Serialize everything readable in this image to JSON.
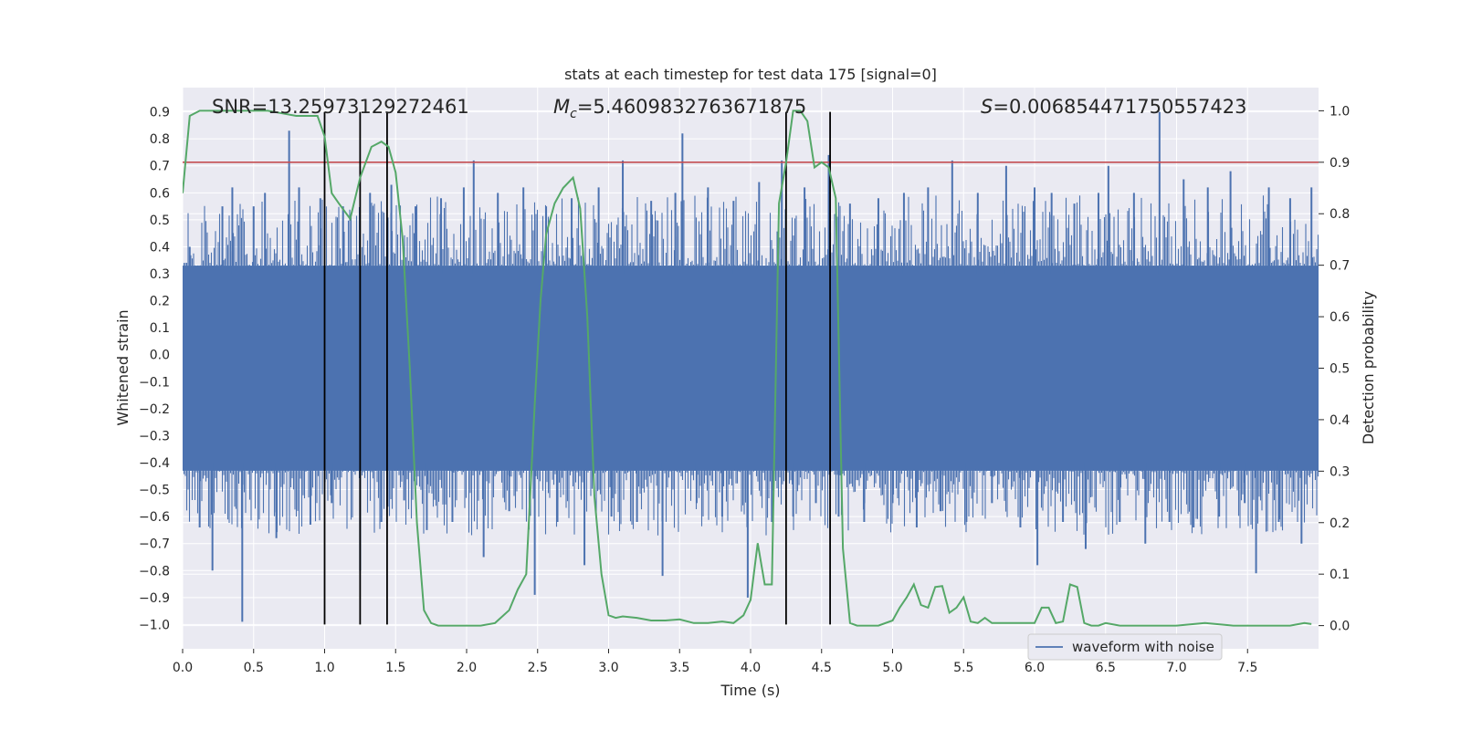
{
  "chart_data": {
    "type": "line",
    "title": "stats at each timestep for test data 175 [signal=0]",
    "xlabel": "Time (s)",
    "ylabel": "Whitened strain",
    "y2label": "Detection probability",
    "xlim": [
      0.0,
      8.0
    ],
    "ylim": [
      -1.09,
      0.99
    ],
    "y2lim": [
      -0.045,
      1.045
    ],
    "x_ticks": [
      0.0,
      0.5,
      1.0,
      1.5,
      2.0,
      2.5,
      3.0,
      3.5,
      4.0,
      4.5,
      5.0,
      5.5,
      6.0,
      6.5,
      7.0,
      7.5
    ],
    "x_tick_labels": [
      "0.0",
      "0.5",
      "1.0",
      "1.5",
      "2.0",
      "2.5",
      "3.0",
      "3.5",
      "4.0",
      "4.5",
      "5.0",
      "5.5",
      "6.0",
      "6.5",
      "7.0",
      "7.5"
    ],
    "y_ticks": [
      0.9,
      0.8,
      0.7,
      0.6,
      0.5,
      0.4,
      0.3,
      0.2,
      0.1,
      0.0,
      -0.1,
      -0.2,
      -0.3,
      -0.4,
      -0.5,
      -0.6,
      -0.7,
      -0.8,
      -0.9,
      -1.0
    ],
    "y_tick_labels": [
      "0.9",
      "0.8",
      "0.7",
      "0.6",
      "0.5",
      "0.4",
      "0.3",
      "0.2",
      "0.1",
      "0.0",
      "−0.1",
      "−0.2",
      "−0.3",
      "−0.4",
      "−0.5",
      "−0.6",
      "−0.7",
      "−0.8",
      "−0.9",
      "−1.0"
    ],
    "y2_ticks": [
      1.0,
      0.9,
      0.8,
      0.7,
      0.6,
      0.5,
      0.4,
      0.3,
      0.2,
      0.1,
      0.0
    ],
    "y2_tick_labels": [
      "1.0",
      "0.9",
      "0.8",
      "0.7",
      "0.6",
      "0.5",
      "0.4",
      "0.3",
      "0.2",
      "0.1",
      "0.0"
    ],
    "grid": true,
    "legend": {
      "position": "bottom-right",
      "entries": [
        "waveform with noise"
      ]
    },
    "annotations": {
      "snr": "SNR=13.25973129272461",
      "mc_symbol": "M",
      "mc_sub": "c",
      "mc_value": "=5.4609832763671875",
      "s_symbol": "S",
      "s_value": "=0.006854471750557423"
    },
    "threshold": {
      "value": 0.9,
      "axis": "y2",
      "color": "#c44e52"
    },
    "vertical_lines": [
      1.0,
      1.25,
      1.44,
      4.25,
      4.56
    ],
    "waveform": {
      "name": "waveform with noise",
      "color": "#4c72b0",
      "core_range": [
        -0.43,
        0.33
      ],
      "spikes": [
        [
          0.05,
          0.4
        ],
        [
          0.12,
          -0.64
        ],
        [
          0.21,
          -0.8
        ],
        [
          0.28,
          0.55
        ],
        [
          0.35,
          0.62
        ],
        [
          0.42,
          -0.99
        ],
        [
          0.5,
          0.55
        ],
        [
          0.58,
          0.6
        ],
        [
          0.66,
          -0.68
        ],
        [
          0.75,
          0.83
        ],
        [
          0.82,
          0.62
        ],
        [
          0.9,
          -0.63
        ],
        [
          0.97,
          0.58
        ],
        [
          1.05,
          -0.55
        ],
        [
          1.13,
          0.55
        ],
        [
          1.25,
          -0.8
        ],
        [
          1.32,
          0.6
        ],
        [
          1.4,
          -0.62
        ],
        [
          1.47,
          0.63
        ],
        [
          1.56,
          -0.54
        ],
        [
          1.64,
          0.55
        ],
        [
          1.72,
          -0.65
        ],
        [
          1.82,
          0.58
        ],
        [
          1.9,
          -0.62
        ],
        [
          1.98,
          0.62
        ],
        [
          2.05,
          0.72
        ],
        [
          2.12,
          -0.75
        ],
        [
          2.22,
          0.6
        ],
        [
          2.3,
          -0.58
        ],
        [
          2.4,
          0.62
        ],
        [
          2.48,
          -0.89
        ],
        [
          2.56,
          0.55
        ],
        [
          2.64,
          -0.62
        ],
        [
          2.74,
          0.58
        ],
        [
          2.83,
          -0.78
        ],
        [
          2.93,
          0.62
        ],
        [
          3.02,
          -0.6
        ],
        [
          3.1,
          0.72
        ],
        [
          3.2,
          -0.62
        ],
        [
          3.3,
          0.57
        ],
        [
          3.38,
          -0.82
        ],
        [
          3.47,
          0.6
        ],
        [
          3.52,
          0.82
        ],
        [
          3.62,
          -0.55
        ],
        [
          3.7,
          0.62
        ],
        [
          3.8,
          -0.6
        ],
        [
          3.88,
          0.57
        ],
        [
          3.98,
          -0.9
        ],
        [
          4.06,
          0.64
        ],
        [
          4.15,
          -0.62
        ],
        [
          4.22,
          0.72
        ],
        [
          4.3,
          -0.6
        ],
        [
          4.38,
          0.62
        ],
        [
          4.46,
          -0.55
        ],
        [
          4.55,
          0.74
        ],
        [
          4.62,
          -0.6
        ],
        [
          4.7,
          0.56
        ],
        [
          4.8,
          -0.62
        ],
        [
          4.9,
          0.58
        ],
        [
          5.0,
          -0.55
        ],
        [
          5.08,
          0.6
        ],
        [
          5.17,
          -0.64
        ],
        [
          5.25,
          0.62
        ],
        [
          5.34,
          -0.58
        ],
        [
          5.42,
          0.72
        ],
        [
          5.52,
          -0.62
        ],
        [
          5.6,
          0.6
        ],
        [
          5.7,
          -0.55
        ],
        [
          5.8,
          0.7
        ],
        [
          5.9,
          -0.64
        ],
        [
          6.0,
          0.62
        ],
        [
          6.02,
          -0.78
        ],
        [
          6.12,
          0.6
        ],
        [
          6.2,
          -0.62
        ],
        [
          6.28,
          0.56
        ],
        [
          6.36,
          -0.72
        ],
        [
          6.45,
          0.6
        ],
        [
          6.52,
          0.7
        ],
        [
          6.6,
          -0.62
        ],
        [
          6.7,
          0.6
        ],
        [
          6.78,
          -0.7
        ],
        [
          6.88,
          0.9
        ],
        [
          6.95,
          -0.62
        ],
        [
          7.05,
          0.65
        ],
        [
          7.12,
          -0.64
        ],
        [
          7.22,
          0.62
        ],
        [
          7.3,
          -0.6
        ],
        [
          7.38,
          0.68
        ],
        [
          7.48,
          -0.55
        ],
        [
          7.56,
          -0.81
        ],
        [
          7.65,
          0.62
        ],
        [
          7.72,
          -0.62
        ],
        [
          7.8,
          0.58
        ],
        [
          7.88,
          -0.7
        ],
        [
          7.95,
          0.62
        ]
      ]
    },
    "probability": {
      "color": "#55a868",
      "x": [
        0.0,
        0.05,
        0.12,
        0.2,
        0.4,
        0.6,
        0.7,
        0.8,
        0.88,
        0.95,
        1.0,
        1.05,
        1.1,
        1.18,
        1.25,
        1.33,
        1.4,
        1.45,
        1.5,
        1.55,
        1.6,
        1.65,
        1.7,
        1.75,
        1.8,
        1.9,
        2.0,
        2.1,
        2.2,
        2.3,
        2.36,
        2.42,
        2.48,
        2.52,
        2.56,
        2.62,
        2.68,
        2.75,
        2.8,
        2.85,
        2.9,
        2.95,
        3.0,
        3.05,
        3.1,
        3.2,
        3.3,
        3.4,
        3.5,
        3.6,
        3.7,
        3.8,
        3.88,
        3.95,
        4.0,
        4.05,
        4.1,
        4.15,
        4.2,
        4.25,
        4.3,
        4.35,
        4.4,
        4.45,
        4.5,
        4.55,
        4.6,
        4.65,
        4.7,
        4.75,
        4.8,
        4.9,
        5.0,
        5.05,
        5.1,
        5.15,
        5.2,
        5.25,
        5.3,
        5.35,
        5.4,
        5.45,
        5.5,
        5.55,
        5.6,
        5.65,
        5.7,
        5.8,
        5.9,
        6.0,
        6.05,
        6.1,
        6.15,
        6.2,
        6.25,
        6.3,
        6.35,
        6.4,
        6.45,
        6.5,
        6.6,
        6.7,
        6.8,
        7.0,
        7.2,
        7.4,
        7.6,
        7.8,
        7.9,
        7.95
      ],
      "y": [
        0.84,
        0.99,
        1.0,
        1.0,
        1.0,
        1.0,
        0.995,
        0.99,
        0.99,
        0.99,
        0.95,
        0.84,
        0.82,
        0.79,
        0.87,
        0.93,
        0.94,
        0.93,
        0.88,
        0.75,
        0.5,
        0.2,
        0.03,
        0.005,
        0.0,
        0.0,
        0.0,
        0.0,
        0.005,
        0.03,
        0.07,
        0.1,
        0.43,
        0.63,
        0.76,
        0.82,
        0.85,
        0.87,
        0.81,
        0.6,
        0.25,
        0.1,
        0.02,
        0.015,
        0.018,
        0.015,
        0.01,
        0.01,
        0.012,
        0.005,
        0.005,
        0.008,
        0.005,
        0.02,
        0.05,
        0.16,
        0.08,
        0.08,
        0.82,
        0.9,
        1.0,
        1.0,
        0.98,
        0.89,
        0.9,
        0.89,
        0.83,
        0.15,
        0.005,
        0.0,
        0.0,
        0.0,
        0.01,
        0.035,
        0.055,
        0.08,
        0.04,
        0.035,
        0.075,
        0.077,
        0.025,
        0.035,
        0.055,
        0.008,
        0.005,
        0.015,
        0.005,
        0.005,
        0.005,
        0.005,
        0.035,
        0.035,
        0.005,
        0.008,
        0.08,
        0.075,
        0.005,
        0.0,
        0.0,
        0.005,
        0.0,
        0.0,
        0.0,
        0.0,
        0.005,
        0.0,
        0.0,
        0.0,
        0.005,
        0.003
      ]
    }
  }
}
